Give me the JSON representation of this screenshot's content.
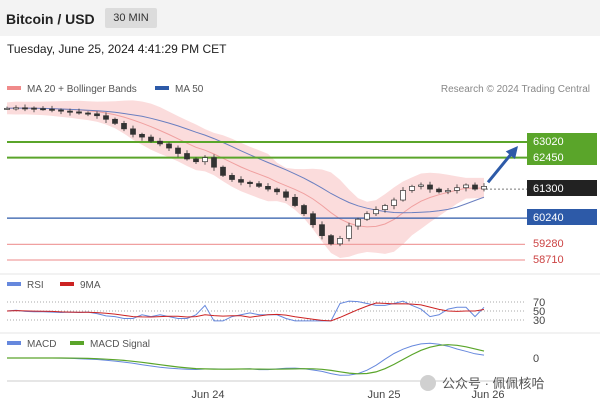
{
  "header": {
    "title": "Bitcoin / USD",
    "timeframe": "30 MIN",
    "datetime": "Tuesday, June 25, 2024 4:41:29 PM CET"
  },
  "legend": {
    "items": [
      {
        "label": "MA 20 + Bollinger Bands",
        "color": "#f08a8a"
      },
      {
        "label": "MA 50",
        "color": "#2d5aa8"
      }
    ],
    "credit": "Research © 2024 Trading Central"
  },
  "colors": {
    "resistance": "#5aa52a",
    "support_blue": "#2d5aa8",
    "support_red": "#f0a0a0",
    "price_tag": "#222222",
    "arrow": "#2d5aa8",
    "band_fill": "#fbdcdc"
  },
  "chart_data": [
    {
      "type": "line",
      "name": "price",
      "x_labels": [
        "Jun 24",
        "Jun 25",
        "Jun 26"
      ],
      "close": [
        64250,
        64270,
        64260,
        64240,
        64220,
        64190,
        64150,
        64120,
        64080,
        64050,
        63980,
        63850,
        63700,
        63500,
        63300,
        63200,
        63050,
        62950,
        62800,
        62600,
        62400,
        62300,
        62450,
        62100,
        61800,
        61650,
        61550,
        61500,
        61400,
        61300,
        61200,
        61000,
        60700,
        60400,
        60000,
        59600,
        59300,
        59500,
        59950,
        60200,
        60400,
        60550,
        60700,
        60900,
        61250,
        61400,
        61450,
        61300,
        61200,
        61250,
        61350,
        61450,
        61300,
        61400
      ],
      "current_price": 61300,
      "target_levels": [
        63020,
        62450
      ],
      "current_tag": 61300,
      "support_levels": [
        60240,
        59280,
        58710
      ]
    },
    {
      "type": "line",
      "name": "RSI",
      "legend": [
        {
          "label": "RSI",
          "color": "#6688dd"
        },
        {
          "label": "9MA",
          "color": "#cc2222"
        }
      ],
      "ticks": [
        "70",
        "50",
        "30"
      ]
    },
    {
      "type": "line",
      "name": "MACD",
      "legend": [
        {
          "label": "MACD",
          "color": "#6688dd"
        },
        {
          "label": "MACD Signal",
          "color": "#5aa52a"
        }
      ],
      "ticks": [
        "0"
      ]
    }
  ],
  "watermark": "公众号 · 佩佩核哈"
}
